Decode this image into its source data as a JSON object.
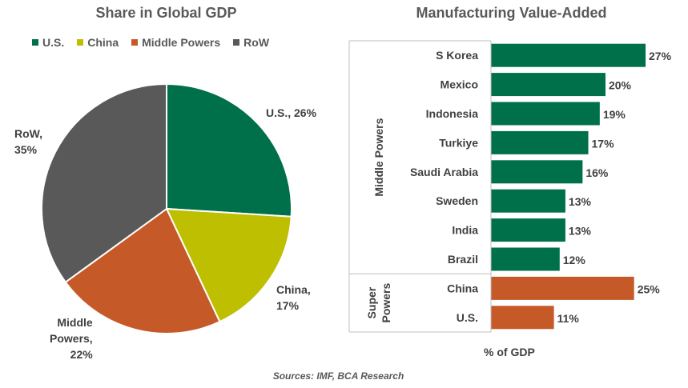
{
  "chart_data": [
    {
      "type": "pie",
      "title": "Share in Global GDP",
      "legend_position": "top",
      "slices": [
        {
          "name": "U.S.",
          "value": 26,
          "color": "#00704A",
          "label_lines": [
            "U.S., 26%"
          ]
        },
        {
          "name": "China",
          "value": 17,
          "color": "#BDBF00",
          "label_lines": [
            "China,",
            "17%"
          ]
        },
        {
          "name": "Middle Powers",
          "value": 22,
          "color": "#C55A28",
          "label_lines": [
            "Middle",
            "Powers,",
            "22%"
          ]
        },
        {
          "name": "RoW",
          "value": 35,
          "color": "#595959",
          "label_lines": [
            "RoW,",
            "35%"
          ]
        }
      ]
    },
    {
      "type": "bar",
      "orientation": "horizontal",
      "title": "Manufacturing Value-Added",
      "xlabel": "% of GDP",
      "categories": [
        "S Korea",
        "Mexico",
        "Indonesia",
        "Turkiye",
        "Saudi Arabia",
        "Sweden",
        "India",
        "Brazil",
        "China",
        "U.S."
      ],
      "values": [
        27,
        20,
        19,
        17,
        16,
        13,
        13,
        12,
        25,
        11
      ],
      "value_labels": [
        "27%",
        "20%",
        "19%",
        "17%",
        "16%",
        "13%",
        "13%",
        "12%",
        "25%",
        "11%"
      ],
      "colors": [
        "#00704A",
        "#00704A",
        "#00704A",
        "#00704A",
        "#00704A",
        "#00704A",
        "#00704A",
        "#00704A",
        "#C55A28",
        "#C55A28"
      ],
      "groups": [
        {
          "name": "Middle Powers",
          "lines": [
            "Middle Powers"
          ],
          "count": 8
        },
        {
          "name": "Super Powers",
          "lines": [
            "Super",
            "Powers"
          ],
          "count": 2
        }
      ]
    }
  ],
  "source": "Sources: IMF, BCA Research"
}
